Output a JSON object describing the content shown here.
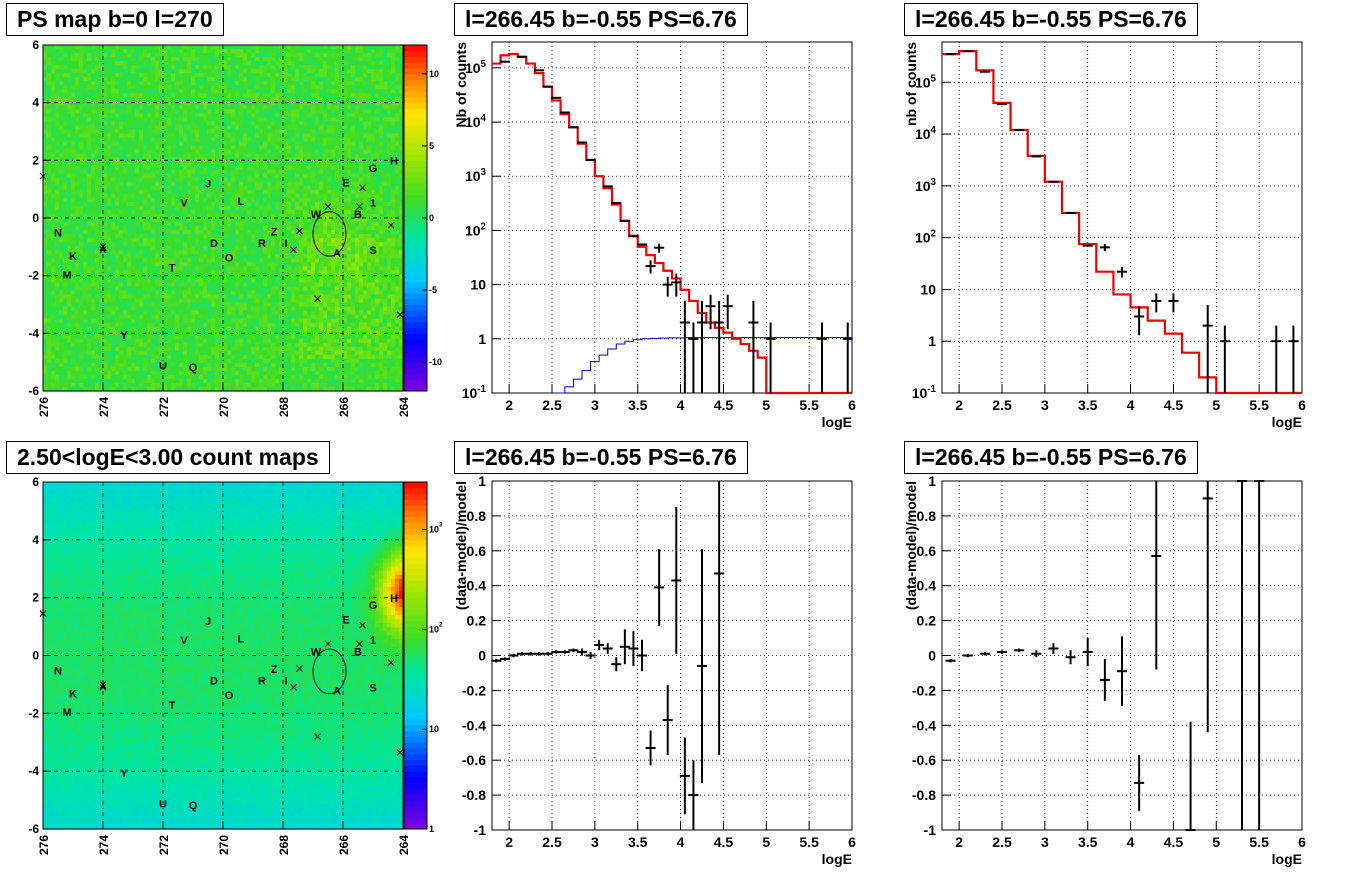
{
  "page": {
    "titles": {
      "map_top": "PS map b=0 l=270",
      "map_bottom": "2.50<logE<3.00 count maps",
      "spec1": "l=266.45 b=-0.55 PS=6.76",
      "spec2": "l=266.45 b=-0.55 PS=6.76",
      "res1": "l=266.45 b=-0.55 PS=6.76",
      "res2": "l=266.45 b=-0.55 PS=6.76"
    }
  },
  "colors": {
    "data": "#000000",
    "model": "#ee0000",
    "background": "#0000cc",
    "map_fill": "#33dd22"
  },
  "chart_data": [
    {
      "id": "map_top",
      "type": "heatmap",
      "xlim": [
        276,
        264
      ],
      "ylim": [
        -6,
        6
      ],
      "xticks": [
        "276",
        "274",
        "272",
        "270",
        "268",
        "266",
        "264"
      ],
      "yticks": [
        "-6",
        "-4",
        "-2",
        "0",
        "2",
        "4",
        "6"
      ],
      "colorbar": {
        "ticks": [
          "-10",
          "-5",
          "0",
          "5",
          "10"
        ],
        "range": [
          -12,
          12
        ]
      },
      "circle": {
        "l": 266.45,
        "b": -0.55,
        "r": 0.55
      },
      "crosses": [
        [
          276,
          1.45
        ],
        [
          274,
          -1.1
        ],
        [
          267.65,
          -1.1
        ],
        [
          267.45,
          -0.45
        ],
        [
          266.5,
          0.4
        ],
        [
          265.45,
          0.4
        ],
        [
          265.35,
          1.05
        ],
        [
          264.4,
          -0.25
        ],
        [
          266.85,
          -2.8
        ],
        [
          264.1,
          -3.35
        ]
      ],
      "labels": [
        {
          "t": "N",
          "l": 275.5,
          "b": -0.65
        },
        {
          "t": "K",
          "l": 275.0,
          "b": -1.45
        },
        {
          "t": "M",
          "l": 275.2,
          "b": -2.1
        },
        {
          "t": "X",
          "l": 274.0,
          "b": -1.15
        },
        {
          "t": "Y",
          "l": 273.3,
          "b": -4.2
        },
        {
          "t": "T",
          "l": 271.7,
          "b": -1.85
        },
        {
          "t": "U",
          "l": 272.0,
          "b": -5.25
        },
        {
          "t": "Q",
          "l": 271.0,
          "b": -5.3
        },
        {
          "t": "V",
          "l": 271.3,
          "b": 0.4
        },
        {
          "t": "J",
          "l": 270.5,
          "b": 1.05
        },
        {
          "t": "L",
          "l": 269.4,
          "b": 0.45
        },
        {
          "t": "D",
          "l": 270.3,
          "b": -1.0
        },
        {
          "t": "O",
          "l": 269.8,
          "b": -1.5
        },
        {
          "t": "R",
          "l": 268.7,
          "b": -1.0
        },
        {
          "t": "Z",
          "l": 268.3,
          "b": -0.6
        },
        {
          "t": "I",
          "l": 267.9,
          "b": -1.0
        },
        {
          "t": "W",
          "l": 266.9,
          "b": 0.0
        },
        {
          "t": "A",
          "l": 266.2,
          "b": -1.35
        },
        {
          "t": "E",
          "l": 265.9,
          "b": 1.1
        },
        {
          "t": "B",
          "l": 265.5,
          "b": 0.0
        },
        {
          "t": "1",
          "l": 265.0,
          "b": 0.4
        },
        {
          "t": "S",
          "l": 265.0,
          "b": -1.25
        },
        {
          "t": "G",
          "l": 265.0,
          "b": 1.6
        },
        {
          "t": "H",
          "l": 264.3,
          "b": 1.85
        }
      ]
    },
    {
      "id": "map_bottom",
      "type": "heatmap",
      "xlim": [
        276,
        264
      ],
      "ylim": [
        -6,
        6
      ],
      "xticks": [
        "276",
        "274",
        "272",
        "270",
        "268",
        "266",
        "264"
      ],
      "yticks": [
        "-6",
        "-4",
        "-2",
        "0",
        "2",
        "4",
        "6"
      ],
      "colorbar": {
        "ticks": [
          "1",
          "10",
          "10^2",
          "10^3"
        ],
        "log": true,
        "range": [
          1,
          3000
        ]
      },
      "circle": {
        "l": 266.45,
        "b": -0.55,
        "r": 0.55
      },
      "crosses": [
        [
          276,
          1.45
        ],
        [
          274,
          -1.1
        ],
        [
          267.65,
          -1.1
        ],
        [
          267.45,
          -0.45
        ],
        [
          266.5,
          0.4
        ],
        [
          265.45,
          0.4
        ],
        [
          265.35,
          1.05
        ],
        [
          264.4,
          -0.25
        ],
        [
          266.85,
          -2.8
        ],
        [
          264.1,
          -3.35
        ]
      ],
      "labels": [
        {
          "t": "N",
          "l": 275.5,
          "b": -0.65
        },
        {
          "t": "K",
          "l": 275.0,
          "b": -1.45
        },
        {
          "t": "M",
          "l": 275.2,
          "b": -2.1
        },
        {
          "t": "X",
          "l": 274.0,
          "b": -1.15
        },
        {
          "t": "Y",
          "l": 273.3,
          "b": -4.2
        },
        {
          "t": "T",
          "l": 271.7,
          "b": -1.85
        },
        {
          "t": "U",
          "l": 272.0,
          "b": -5.25
        },
        {
          "t": "Q",
          "l": 271.0,
          "b": -5.3
        },
        {
          "t": "V",
          "l": 271.3,
          "b": 0.4
        },
        {
          "t": "J",
          "l": 270.5,
          "b": 1.05
        },
        {
          "t": "L",
          "l": 269.4,
          "b": 0.45
        },
        {
          "t": "D",
          "l": 270.3,
          "b": -1.0
        },
        {
          "t": "O",
          "l": 269.8,
          "b": -1.5
        },
        {
          "t": "R",
          "l": 268.7,
          "b": -1.0
        },
        {
          "t": "Z",
          "l": 268.3,
          "b": -0.6
        },
        {
          "t": "I",
          "l": 267.9,
          "b": -1.0
        },
        {
          "t": "W",
          "l": 266.9,
          "b": 0.0
        },
        {
          "t": "A",
          "l": 266.2,
          "b": -1.35
        },
        {
          "t": "E",
          "l": 265.9,
          "b": 1.1
        },
        {
          "t": "B",
          "l": 265.5,
          "b": 0.0
        },
        {
          "t": "1",
          "l": 265.0,
          "b": 0.4
        },
        {
          "t": "S",
          "l": 265.0,
          "b": -1.25
        },
        {
          "t": "G",
          "l": 265.0,
          "b": 1.6
        },
        {
          "t": "H",
          "l": 264.3,
          "b": 1.85
        }
      ]
    },
    {
      "id": "spec1",
      "type": "line",
      "yscale": "log",
      "xlabel": "logE",
      "ylabel": "Nb of counts",
      "xlim": [
        1.8,
        6
      ],
      "ylim": [
        0.1,
        300000
      ],
      "xticks": [
        "2",
        "2.5",
        "3",
        "3.5",
        "4",
        "4.5",
        "5",
        "5.5",
        "6"
      ],
      "yticks": [
        "10^-1",
        "1",
        "10",
        "10^2",
        "10^3",
        "10^4",
        "10^5"
      ],
      "model": {
        "edges": [
          1.8,
          1.9,
          2.0,
          2.1,
          2.2,
          2.3,
          2.4,
          2.5,
          2.6,
          2.7,
          2.8,
          2.9,
          3.0,
          3.1,
          3.2,
          3.3,
          3.4,
          3.5,
          3.6,
          3.7,
          3.8,
          3.9,
          4.0,
          4.1,
          4.2,
          4.3,
          4.4,
          4.5,
          4.6,
          4.7,
          4.8,
          4.9,
          5.0,
          5.1,
          5.2,
          5.3,
          5.4,
          5.5,
          5.6,
          5.7,
          5.8,
          5.9,
          6.0
        ],
        "values": [
          120000,
          170000,
          180000,
          160000,
          120000,
          80000,
          45000,
          25000,
          14000,
          8000,
          4000,
          2000,
          1000,
          600,
          300,
          150,
          80,
          50,
          35,
          25,
          18,
          13,
          8,
          5,
          3,
          2,
          1.6,
          1.3,
          1.0,
          0.8,
          0.6,
          0.45,
          0.05,
          0.05,
          0.05,
          0.05,
          0.05,
          0.05,
          0.05,
          0.05,
          0.05,
          0.05
        ]
      },
      "background": {
        "edges": [
          2.45,
          2.55,
          2.65,
          2.75,
          2.85,
          2.95,
          3.05,
          3.15,
          3.25,
          3.35,
          3.45,
          3.55,
          3.65,
          3.75,
          3.85,
          3.95,
          4.05,
          6.0
        ],
        "values": [
          0.08,
          0.1,
          0.13,
          0.18,
          0.26,
          0.38,
          0.5,
          0.65,
          0.8,
          0.9,
          0.96,
          1.0,
          1.02,
          1.03,
          1.04,
          1.04,
          1.05
        ]
      },
      "points": [
        {
          "x": 1.95,
          "y": 130000
        },
        {
          "x": 2.15,
          "y": 160000
        },
        {
          "x": 2.35,
          "y": 90000
        },
        {
          "x": 2.45,
          "y": 45000
        },
        {
          "x": 2.55,
          "y": 28000
        },
        {
          "x": 2.65,
          "y": 15000
        },
        {
          "x": 2.75,
          "y": 8000
        },
        {
          "x": 2.85,
          "y": 4200
        },
        {
          "x": 2.95,
          "y": 2000
        },
        {
          "x": 3.15,
          "y": 650
        },
        {
          "x": 3.25,
          "y": 320
        },
        {
          "x": 3.35,
          "y": 150
        },
        {
          "x": 3.45,
          "y": 78
        },
        {
          "x": 3.55,
          "y": 55
        },
        {
          "x": 3.65,
          "y": 22,
          "ey": 6
        },
        {
          "x": 3.75,
          "y": 48,
          "ey": 9
        },
        {
          "x": 3.85,
          "y": 10,
          "ey": 4
        },
        {
          "x": 3.95,
          "y": 11,
          "ey": 5
        },
        {
          "x": 4.05,
          "y": 2,
          "eylo": 1.9,
          "eyhi": 3
        },
        {
          "x": 4.15,
          "y": 1,
          "eylo": 1,
          "eyhi": 1
        },
        {
          "x": 4.25,
          "y": 2,
          "eylo": 1.9,
          "eyhi": 3
        },
        {
          "x": 4.35,
          "y": 4,
          "ey": 2.5
        },
        {
          "x": 4.45,
          "y": 2,
          "eylo": 1.9,
          "eyhi": 3
        },
        {
          "x": 4.55,
          "y": 4,
          "ey": 2.5
        },
        {
          "x": 4.85,
          "y": 2,
          "eylo": 1.9,
          "eyhi": 3
        },
        {
          "x": 5.05,
          "y": 1,
          "eylo": 1,
          "eyhi": 1
        },
        {
          "x": 5.65,
          "y": 1,
          "eylo": 1,
          "eyhi": 1
        },
        {
          "x": 5.95,
          "y": 1,
          "eylo": 1,
          "eyhi": 1
        }
      ]
    },
    {
      "id": "spec2",
      "type": "line",
      "yscale": "log",
      "xlabel": "logE",
      "ylabel": "nb of counts",
      "xlim": [
        1.8,
        6
      ],
      "ylim": [
        0.1,
        600000
      ],
      "xticks": [
        "2",
        "2.5",
        "3",
        "3.5",
        "4",
        "4.5",
        "5",
        "5.5",
        "6"
      ],
      "yticks": [
        "10^-1",
        "1",
        "10",
        "10^2",
        "10^3",
        "10^4",
        "10^5"
      ],
      "model": {
        "edges": [
          1.8,
          2.0,
          2.2,
          2.4,
          2.6,
          2.8,
          3.0,
          3.2,
          3.4,
          3.6,
          3.8,
          4.0,
          4.2,
          4.4,
          4.6,
          4.8,
          5.0,
          5.2,
          5.4,
          5.6,
          5.8,
          6.0
        ],
        "values": [
          350000,
          400000,
          170000,
          40000,
          12000,
          3800,
          1200,
          300,
          75,
          22,
          8,
          4.5,
          2.5,
          1.4,
          0.6,
          0.2,
          0.05,
          0.05,
          0.05,
          0.05,
          0.05
        ]
      },
      "points": [
        {
          "x": 1.9,
          "y": 350000
        },
        {
          "x": 2.1,
          "y": 400000
        },
        {
          "x": 2.3,
          "y": 160000
        },
        {
          "x": 2.5,
          "y": 38000
        },
        {
          "x": 2.7,
          "y": 12000
        },
        {
          "x": 2.9,
          "y": 3700
        },
        {
          "x": 3.1,
          "y": 1200
        },
        {
          "x": 3.3,
          "y": 300
        },
        {
          "x": 3.5,
          "y": 70
        },
        {
          "x": 3.7,
          "y": 65,
          "ey": 10
        },
        {
          "x": 3.9,
          "y": 22,
          "ey": 5
        },
        {
          "x": 4.1,
          "y": 3,
          "ey": 1.7
        },
        {
          "x": 4.3,
          "y": 6,
          "ey": 2.4
        },
        {
          "x": 4.5,
          "y": 6,
          "ey": 2.4
        },
        {
          "x": 4.9,
          "y": 2,
          "eylo": 1.9,
          "eyhi": 3
        },
        {
          "x": 5.1,
          "y": 1,
          "eylo": 1,
          "eyhi": 1
        },
        {
          "x": 5.7,
          "y": 1,
          "eylo": 1,
          "eyhi": 1
        },
        {
          "x": 5.9,
          "y": 1,
          "eylo": 1,
          "eyhi": 1
        }
      ]
    },
    {
      "id": "res1",
      "type": "scatter",
      "xlabel": "logE",
      "ylabel": "(data-model)/model",
      "xlim": [
        1.8,
        6
      ],
      "ylim": [
        -1,
        1
      ],
      "xticks": [
        "2",
        "2.5",
        "3",
        "3.5",
        "4",
        "4.5",
        "5",
        "5.5",
        "6"
      ],
      "yticks": [
        "-1",
        "-0.8",
        "-0.6",
        "-0.4",
        "-0.2",
        "0",
        "0.2",
        "0.4",
        "0.6",
        "0.8",
        "1"
      ],
      "points": [
        {
          "x": 1.85,
          "y": -0.03,
          "ey": 0.01
        },
        {
          "x": 1.95,
          "y": -0.02,
          "ey": 0.01
        },
        {
          "x": 2.05,
          "y": 0.0,
          "ey": 0.01
        },
        {
          "x": 2.15,
          "y": 0.01,
          "ey": 0.01
        },
        {
          "x": 2.25,
          "y": 0.01,
          "ey": 0.01
        },
        {
          "x": 2.35,
          "y": 0.01,
          "ey": 0.01
        },
        {
          "x": 2.45,
          "y": 0.01,
          "ey": 0.01
        },
        {
          "x": 2.55,
          "y": 0.02,
          "ey": 0.01
        },
        {
          "x": 2.65,
          "y": 0.02,
          "ey": 0.01
        },
        {
          "x": 2.75,
          "y": 0.03,
          "ey": 0.01
        },
        {
          "x": 2.85,
          "y": 0.02,
          "ey": 0.02
        },
        {
          "x": 2.95,
          "y": 0.0,
          "ey": 0.02
        },
        {
          "x": 3.05,
          "y": 0.06,
          "ey": 0.03
        },
        {
          "x": 3.15,
          "y": 0.04,
          "ey": 0.03
        },
        {
          "x": 3.25,
          "y": -0.05,
          "ey": 0.04
        },
        {
          "x": 3.35,
          "y": 0.05,
          "ey": 0.1
        },
        {
          "x": 3.45,
          "y": 0.04,
          "ey": 0.1
        },
        {
          "x": 3.55,
          "y": 0.0,
          "ey": 0.09
        },
        {
          "x": 3.65,
          "y": -0.53,
          "ey": 0.1
        },
        {
          "x": 3.75,
          "y": 0.39,
          "ey": 0.22
        },
        {
          "x": 3.85,
          "y": -0.37,
          "ey": 0.2
        },
        {
          "x": 3.95,
          "y": 0.43,
          "ey": 0.42
        },
        {
          "x": 4.05,
          "y": -0.69,
          "ey": 0.22
        },
        {
          "x": 4.15,
          "y": -0.8,
          "ey": 0.2
        },
        {
          "x": 4.25,
          "y": -0.06,
          "ey": 0.67
        },
        {
          "x": 4.45,
          "y": 0.47,
          "ey": 1.04
        }
      ]
    },
    {
      "id": "res2",
      "type": "scatter",
      "xlabel": "logE",
      "ylabel": "(data-model)/model",
      "xlim": [
        1.8,
        6
      ],
      "ylim": [
        -1,
        1
      ],
      "xticks": [
        "2",
        "2.5",
        "3",
        "3.5",
        "4",
        "4.5",
        "5",
        "5.5",
        "6"
      ],
      "yticks": [
        "-1",
        "-0.8",
        "-0.6",
        "-0.4",
        "-0.2",
        "0",
        "0.2",
        "0.4",
        "0.6",
        "0.8",
        "1"
      ],
      "points": [
        {
          "x": 1.9,
          "y": -0.03,
          "ey": 0.01
        },
        {
          "x": 2.1,
          "y": 0.0,
          "ey": 0.01
        },
        {
          "x": 2.3,
          "y": 0.01,
          "ey": 0.01
        },
        {
          "x": 2.5,
          "y": 0.02,
          "ey": 0.01
        },
        {
          "x": 2.7,
          "y": 0.03,
          "ey": 0.01
        },
        {
          "x": 2.9,
          "y": 0.01,
          "ey": 0.02
        },
        {
          "x": 3.1,
          "y": 0.04,
          "ey": 0.03
        },
        {
          "x": 3.3,
          "y": -0.01,
          "ey": 0.04
        },
        {
          "x": 3.5,
          "y": 0.02,
          "ey": 0.08
        },
        {
          "x": 3.7,
          "y": -0.14,
          "ey": 0.12
        },
        {
          "x": 3.9,
          "y": -0.09,
          "ey": 0.2
        },
        {
          "x": 4.1,
          "y": -0.73,
          "ey": 0.16
        },
        {
          "x": 4.3,
          "y": 0.57,
          "ey": 0.65
        },
        {
          "x": 4.7,
          "y": -1.0,
          "eylo": 0.0,
          "eyhi": 0.62
        },
        {
          "x": 4.9,
          "y": 0.9,
          "eylo": 1.34,
          "eyhi": 1.0
        },
        {
          "x": 5.3,
          "y": 1.0,
          "eylo": 2.0,
          "eyhi": 0.0
        },
        {
          "x": 5.5,
          "y": 1.0,
          "eylo": 2.0,
          "eyhi": 0.0
        }
      ]
    }
  ]
}
